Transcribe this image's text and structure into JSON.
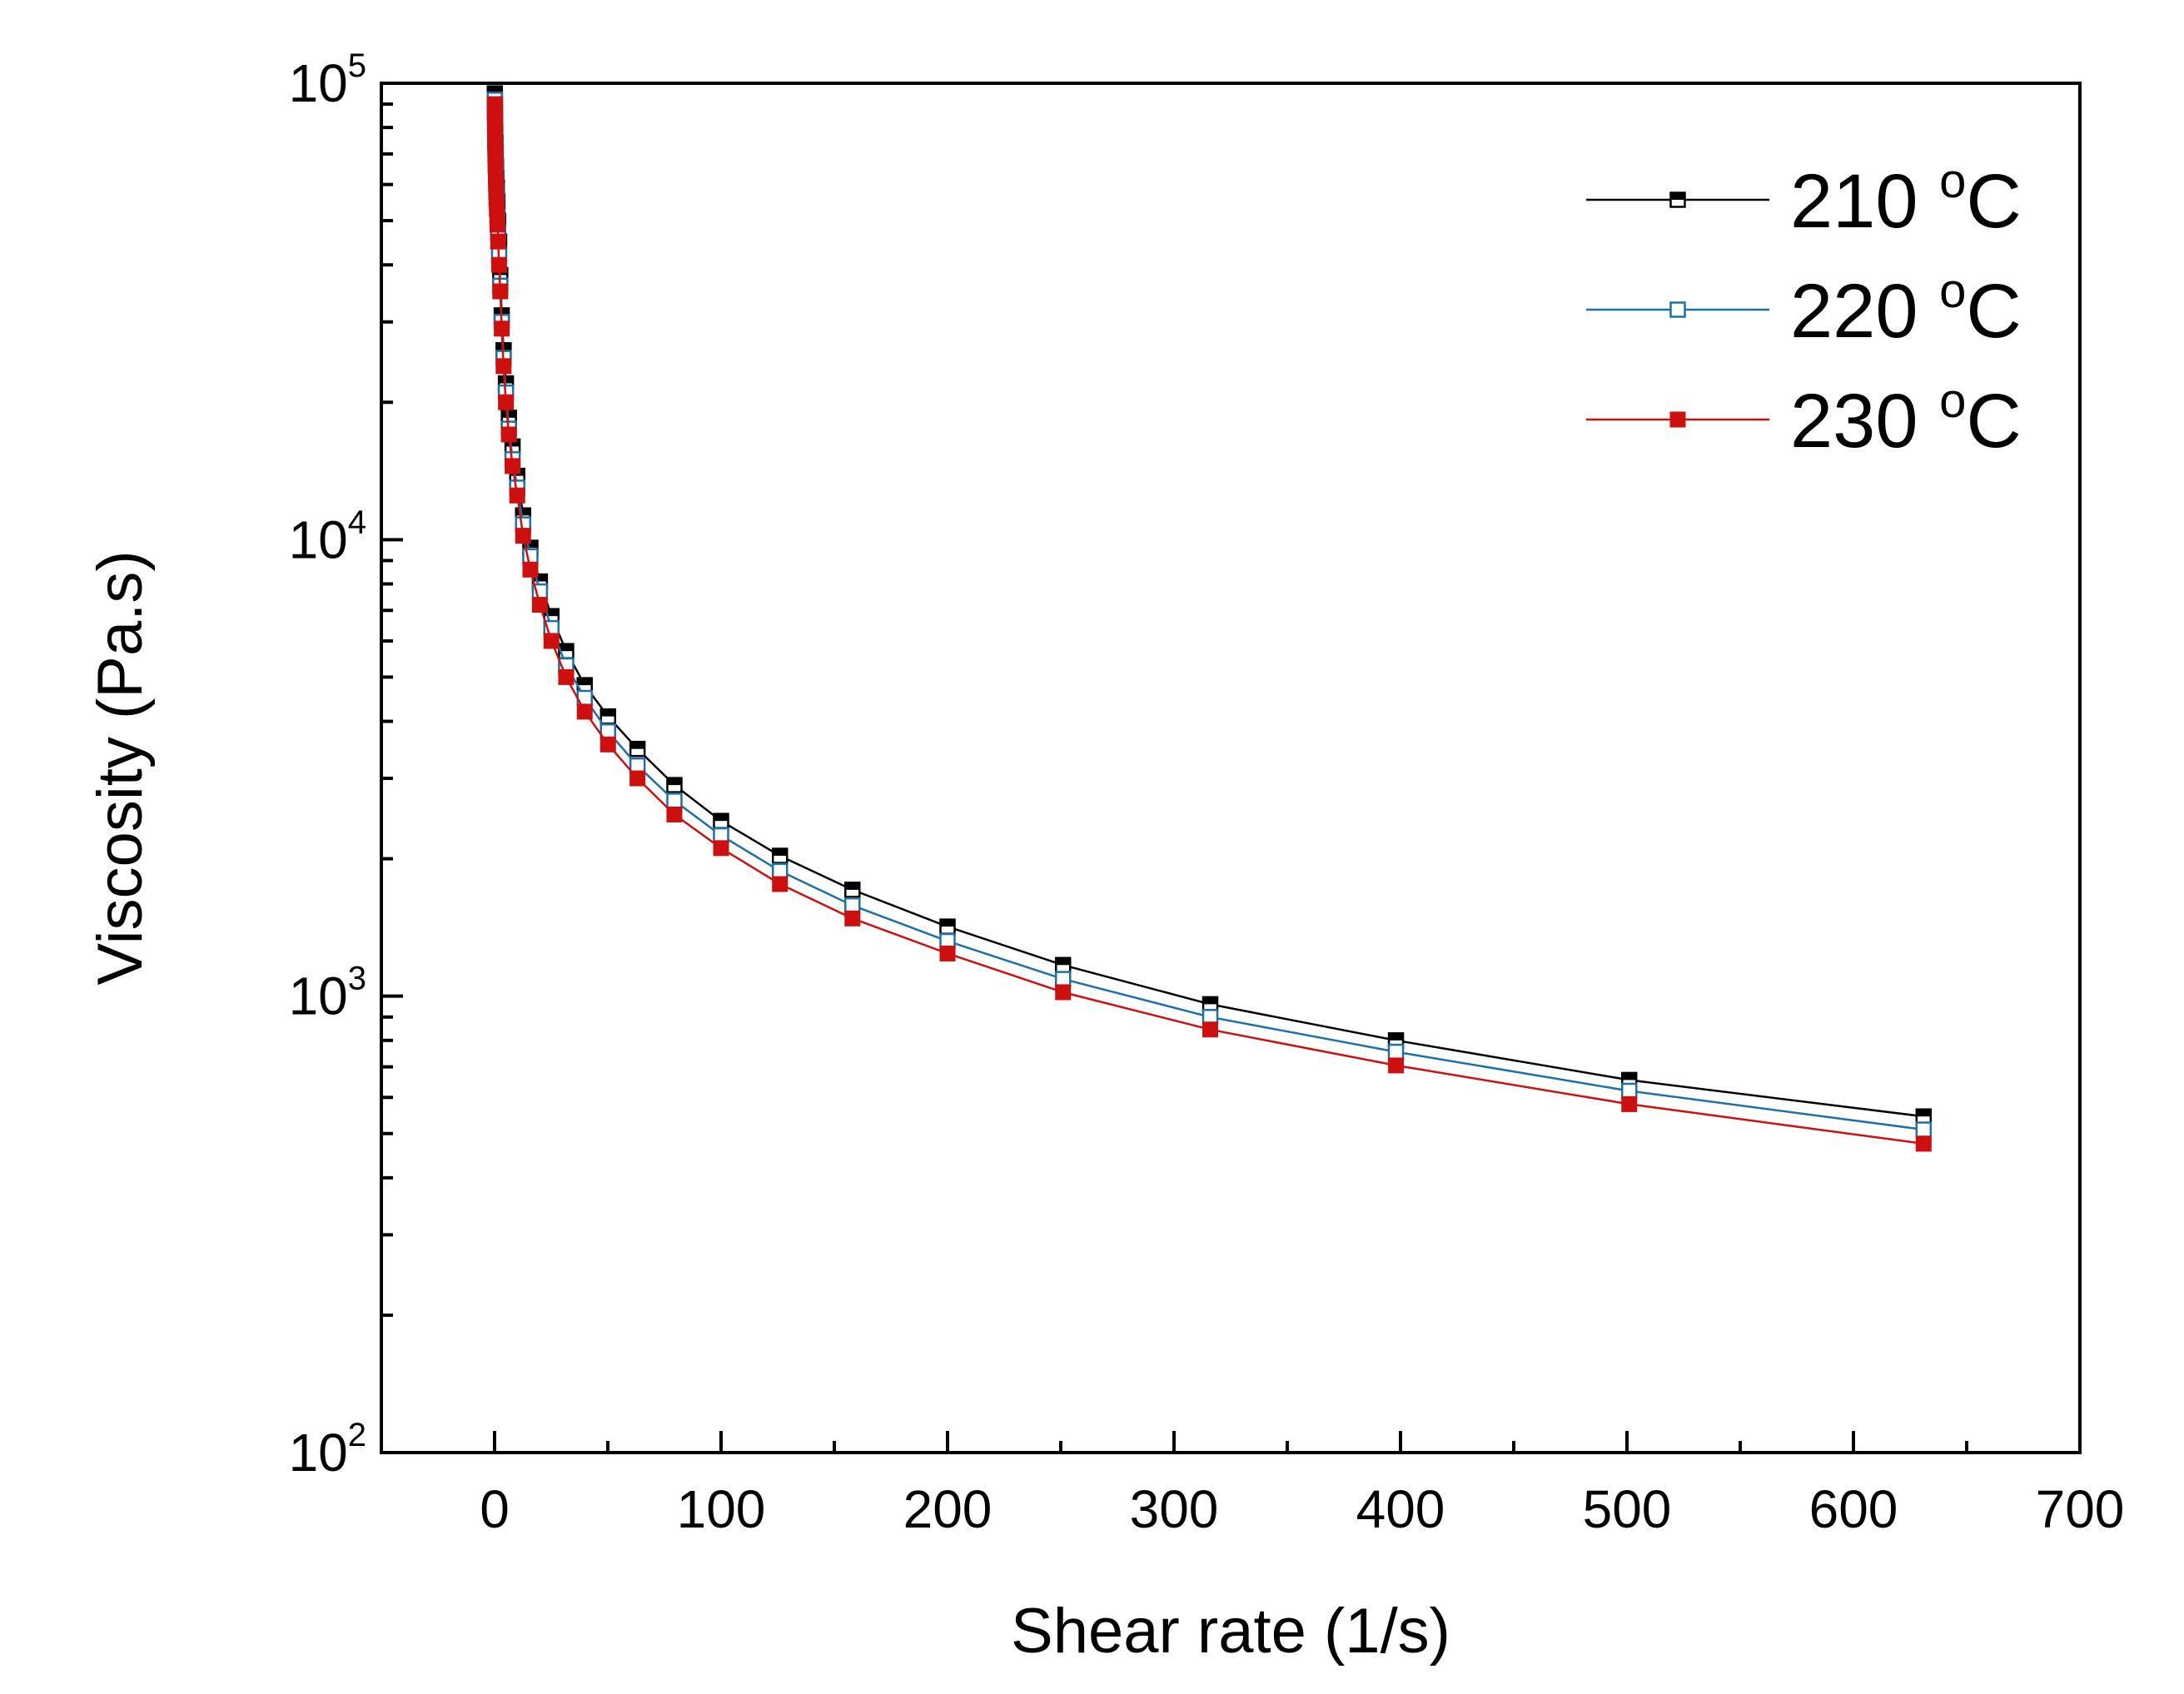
{
  "chart_data": {
    "type": "line",
    "title": "",
    "xlabel": "Shear rate (1/s)",
    "ylabel": "Viscosity (Pa.s)",
    "xlim": [
      -50,
      700
    ],
    "ylim": [
      100,
      100000
    ],
    "yscale": "log",
    "xticks": [
      0,
      100,
      200,
      300,
      400,
      500,
      600,
      700
    ],
    "yticks": [
      {
        "value": 100,
        "base": "10",
        "exp": "2"
      },
      {
        "value": 1000,
        "base": "10",
        "exp": "3"
      },
      {
        "value": 10000,
        "base": "10",
        "exp": "4"
      },
      {
        "value": 100000,
        "base": "10",
        "exp": "5"
      }
    ],
    "legend_position": "top-right",
    "x": [
      0.1,
      0.126,
      0.158,
      0.2,
      0.251,
      0.316,
      0.398,
      0.501,
      0.631,
      0.794,
      1,
      1.26,
      1.58,
      2,
      2.51,
      3.16,
      3.98,
      5.01,
      6.31,
      7.94,
      10,
      12.6,
      15.8,
      20,
      25.1,
      31.6,
      39.8,
      50.1,
      63.1,
      79.4,
      100,
      126,
      158,
      200,
      251,
      316,
      398,
      501,
      631
    ],
    "series": [
      {
        "name": "210 ºC",
        "label_main": "210 ",
        "label_sup": "o",
        "label_unit": "C",
        "color": "#000000",
        "marker": "half-filled-square",
        "values": [
          95000,
          93000,
          90000,
          86000,
          82000,
          78000,
          74000,
          70000,
          66000,
          62000,
          59000,
          55000,
          50000,
          45000,
          38000,
          31000,
          26000,
          22000,
          18500,
          16000,
          13800,
          11300,
          9600,
          8100,
          6800,
          5700,
          4800,
          4100,
          3480,
          2900,
          2420,
          2030,
          1710,
          1420,
          1170,
          960,
          800,
          655,
          545
        ]
      },
      {
        "name": "220 ºC",
        "label_main": "220 ",
        "label_sup": "o",
        "label_unit": "C",
        "color": "#1f6fa8",
        "marker": "open-square",
        "values": [
          92000,
          89000,
          86000,
          82000,
          78000,
          74000,
          70000,
          66000,
          62000,
          58000,
          55000,
          51000,
          47000,
          42000,
          36000,
          30000,
          25000,
          21000,
          17500,
          15000,
          13000,
          10800,
          9200,
          7700,
          6400,
          5300,
          4500,
          3800,
          3200,
          2680,
          2250,
          1880,
          1580,
          1320,
          1090,
          900,
          755,
          620,
          510
        ]
      },
      {
        "name": "230 ºC",
        "label_main": "230 ",
        "label_sup": "o",
        "label_unit": "C",
        "color": "#cc1010",
        "marker": "filled-square",
        "values": [
          90000,
          87000,
          84000,
          80000,
          76000,
          72000,
          68000,
          64000,
          60000,
          56000,
          53000,
          49000,
          45000,
          40000,
          35000,
          29000,
          24000,
          20000,
          17000,
          14500,
          12500,
          10200,
          8600,
          7200,
          6000,
          5000,
          4200,
          3560,
          3000,
          2500,
          2110,
          1760,
          1480,
          1240,
          1020,
          845,
          705,
          580,
          475
        ]
      }
    ]
  }
}
